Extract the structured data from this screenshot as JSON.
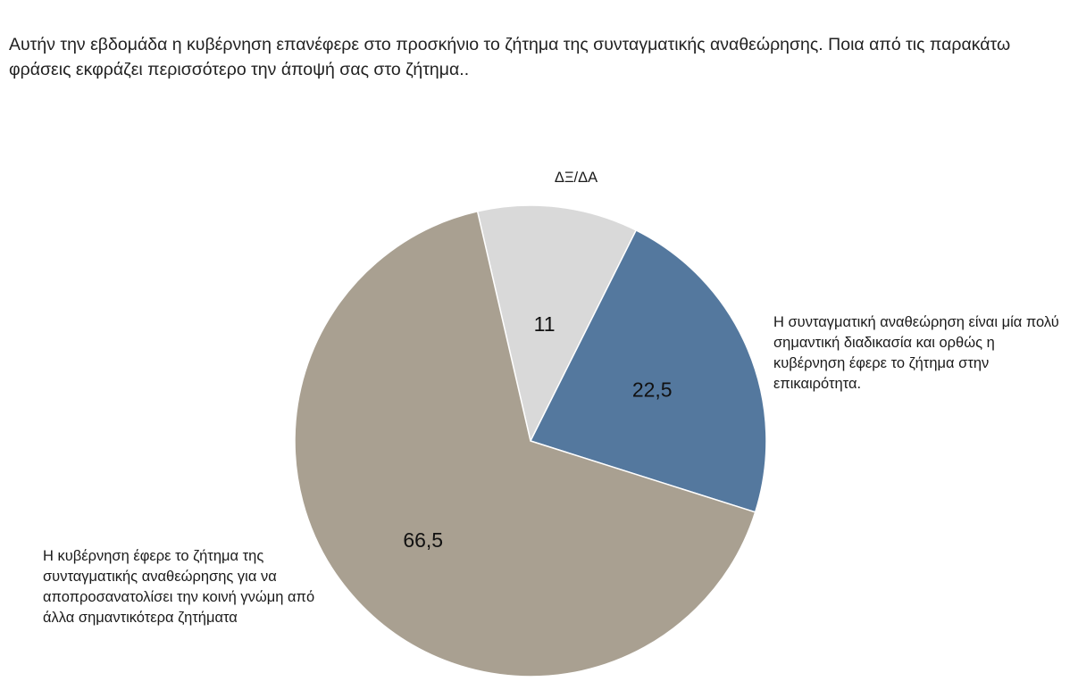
{
  "question": "Αυτήν την εβδομάδα η κυβέρνηση επανέφερε στο προσκήνιο το ζήτημα της συνταγματικής αναθεώρησης. Ποια από τις παρακάτω φράσεις εκφράζει περισσότερο την άποψή σας στο ζήτημα..",
  "chart_data": {
    "type": "pie",
    "title": "",
    "slices": [
      {
        "label": "ΔΞ/ΔΑ",
        "value": 11,
        "value_label": "11",
        "color": "#d9d9d9"
      },
      {
        "label": "Η συνταγματική αναθεώρηση είναι μία πολύ σημαντική διαδικασία και ορθώς η κυβέρνηση έφερε το ζήτημα στην επικαιρότητα.",
        "value": 22.5,
        "value_label": "22,5",
        "color": "#54789e"
      },
      {
        "label": "Η κυβέρνηση έφερε το ζήτημα της συνταγματικής αναθεώρησης για να αποπροσανατολίσει την κοινή γνώμη από άλλα σημαντικότερα ζητήματα",
        "value": 66.5,
        "value_label": "66,5",
        "color": "#a9a091"
      }
    ],
    "legend": "none"
  }
}
